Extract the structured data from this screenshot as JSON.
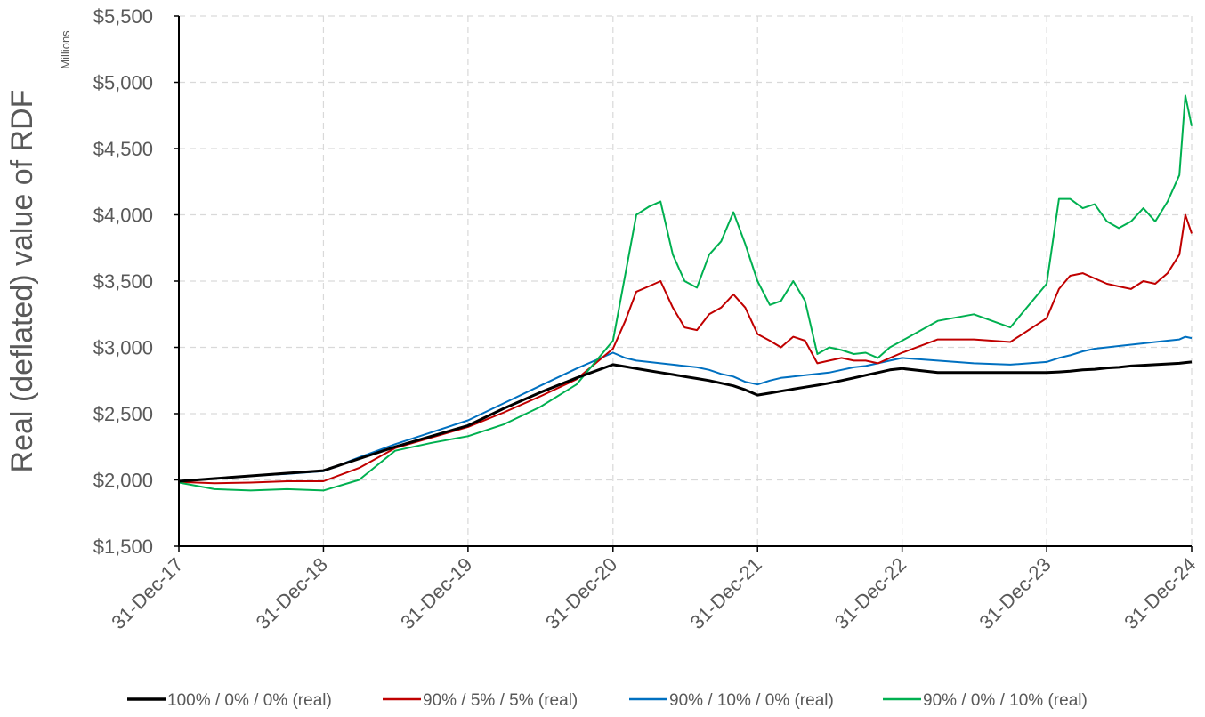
{
  "chart_data": {
    "type": "line",
    "title": "",
    "ylabel": "Real (deflated) value of RDF",
    "y_units_label": "Millions",
    "xlabel": "",
    "ylim": [
      1500,
      5500
    ],
    "y_ticks": [
      1500,
      2000,
      2500,
      3000,
      3500,
      4000,
      4500,
      5000,
      5500
    ],
    "y_tick_labels": [
      "$1,500",
      "$2,000",
      "$2,500",
      "$3,000",
      "$3,500",
      "$4,000",
      "$4,500",
      "$5,000",
      "$5,500"
    ],
    "x_tick_labels": [
      "31-Dec-17",
      "31-Dec-18",
      "31-Dec-19",
      "31-Dec-20",
      "31-Dec-21",
      "31-Dec-22",
      "31-Dec-23",
      "31-Dec-24"
    ],
    "grid": true,
    "legend_position": "bottom",
    "x": [
      "31-Dec-17",
      "31-Mar-18",
      "30-Jun-18",
      "30-Sep-18",
      "31-Dec-18",
      "31-Mar-19",
      "30-Jun-19",
      "30-Sep-19",
      "31-Dec-19",
      "31-Mar-20",
      "30-Jun-20",
      "30-Sep-20",
      "31-Dec-20",
      "31-Jan-21",
      "28-Feb-21",
      "31-Mar-21",
      "30-Apr-21",
      "31-May-21",
      "30-Jun-21",
      "31-Jul-21",
      "31-Aug-21",
      "30-Sep-21",
      "31-Oct-21",
      "30-Nov-21",
      "31-Dec-21",
      "31-Jan-22",
      "28-Feb-22",
      "31-Mar-22",
      "30-Apr-22",
      "31-May-22",
      "30-Jun-22",
      "31-Jul-22",
      "31-Aug-22",
      "30-Sep-22",
      "31-Oct-22",
      "30-Nov-22",
      "31-Dec-22",
      "31-Mar-23",
      "30-Jun-23",
      "30-Sep-23",
      "31-Dec-23",
      "31-Jan-24",
      "28-Feb-24",
      "31-Mar-24",
      "30-Apr-24",
      "31-May-24",
      "30-Jun-24",
      "31-Jul-24",
      "31-Aug-24",
      "30-Sep-24",
      "31-Oct-24",
      "30-Nov-24",
      "15-Dec-24",
      "31-Dec-24"
    ],
    "series": [
      {
        "name": "100% / 0% / 0% (real)",
        "color": "#000000",
        "width": 3,
        "values": [
          1990,
          2010,
          2030,
          2050,
          2070,
          2160,
          2250,
          2330,
          2410,
          2540,
          2660,
          2770,
          2870,
          2855,
          2840,
          2825,
          2810,
          2795,
          2780,
          2765,
          2750,
          2730,
          2710,
          2680,
          2640,
          2655,
          2670,
          2685,
          2700,
          2715,
          2730,
          2750,
          2770,
          2790,
          2810,
          2830,
          2840,
          2810,
          2810,
          2810,
          2810,
          2815,
          2820,
          2830,
          2835,
          2845,
          2850,
          2860,
          2865,
          2870,
          2875,
          2880,
          2885,
          2890
        ]
      },
      {
        "name": "90% / 5% / 5% (real)",
        "color": "#c00000",
        "width": 2,
        "values": [
          1985,
          1975,
          1980,
          1990,
          1990,
          2090,
          2240,
          2320,
          2400,
          2510,
          2630,
          2760,
          2990,
          3200,
          3420,
          3460,
          3500,
          3300,
          3150,
          3130,
          3250,
          3300,
          3400,
          3300,
          3100,
          3050,
          3000,
          3080,
          3050,
          2880,
          2900,
          2920,
          2900,
          2900,
          2880,
          2920,
          2960,
          3060,
          3060,
          3040,
          3220,
          3440,
          3540,
          3560,
          3520,
          3480,
          3460,
          3440,
          3500,
          3480,
          3560,
          3700,
          4000,
          3860
        ]
      },
      {
        "name": "90% / 10% / 0% (real)",
        "color": "#0070c0",
        "width": 2,
        "values": [
          1990,
          2010,
          2030,
          2045,
          2065,
          2170,
          2270,
          2360,
          2450,
          2580,
          2710,
          2840,
          2960,
          2920,
          2900,
          2890,
          2880,
          2870,
          2860,
          2850,
          2830,
          2800,
          2780,
          2740,
          2720,
          2750,
          2770,
          2780,
          2790,
          2800,
          2810,
          2830,
          2850,
          2860,
          2880,
          2900,
          2920,
          2900,
          2880,
          2870,
          2890,
          2920,
          2940,
          2970,
          2990,
          3000,
          3010,
          3020,
          3030,
          3040,
          3050,
          3060,
          3080,
          3070
        ]
      },
      {
        "name": "90% / 0% / 10% (real)",
        "color": "#00b050",
        "width": 2,
        "values": [
          1980,
          1930,
          1920,
          1930,
          1920,
          2000,
          2220,
          2280,
          2330,
          2420,
          2550,
          2720,
          3050,
          3550,
          4000,
          4060,
          4100,
          3700,
          3500,
          3450,
          3700,
          3800,
          4020,
          3780,
          3500,
          3320,
          3350,
          3500,
          3350,
          2950,
          3000,
          2980,
          2950,
          2960,
          2920,
          3000,
          3050,
          3200,
          3250,
          3150,
          3480,
          4120,
          4120,
          4050,
          4080,
          3950,
          3900,
          3950,
          4050,
          3950,
          4100,
          4300,
          4900,
          4670
        ]
      }
    ]
  }
}
